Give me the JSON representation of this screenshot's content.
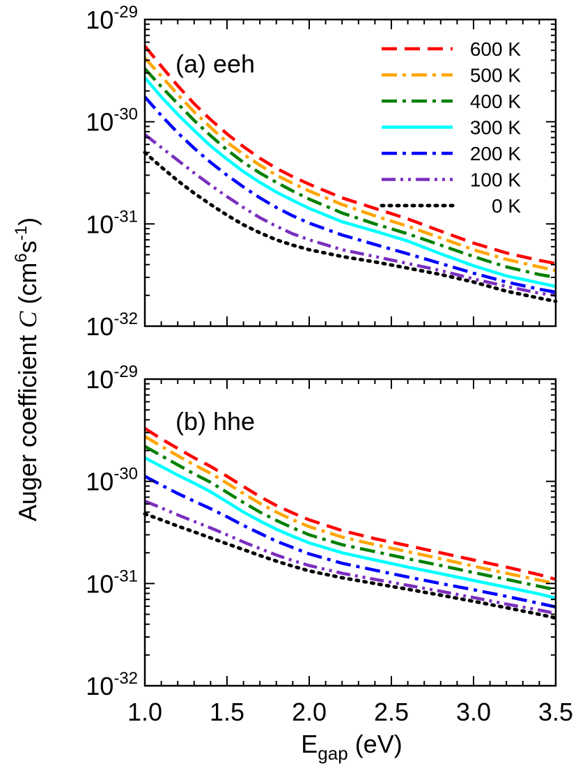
{
  "chart_data": {
    "type": "line",
    "layout": "two vertically stacked panels sharing the x axis",
    "xlabel_main": "E",
    "xlabel_sub": "gap",
    "xlabel_unit": " (eV)",
    "ylabel_text": "Auger coefficient ",
    "ylabel_symbol": "C",
    "ylabel_unit_open": " (cm",
    "ylabel_unit_exp1": "6",
    "ylabel_unit_mid": "s",
    "ylabel_unit_exp2": "-1",
    "ylabel_unit_close": ")",
    "xlim": [
      1.0,
      3.5
    ],
    "x_ticks": [
      "1.0",
      "1.5",
      "2.0",
      "2.5",
      "3.0",
      "3.5"
    ],
    "y_scale": "log",
    "ylim": [
      1e-32,
      1e-29
    ],
    "y_tick_base": "10",
    "y_tick_exponents": [
      "-32",
      "-31",
      "-30",
      "-29"
    ],
    "grid": false,
    "legend_position": "top-right of panel (a)",
    "colors": {
      "600 K": "#ff0000",
      "500 K": "#ffa500",
      "400 K": "#008000",
      "300 K": "#00ffff",
      "200 K": "#0000ff",
      "100 K": "#7b2fbe",
      "0 K": "#000000"
    },
    "panels": [
      {
        "label": "(a) eeh",
        "x": [
          1.0,
          1.1,
          1.2,
          1.3,
          1.4,
          1.5,
          1.6,
          1.7,
          1.8,
          1.9,
          2.0,
          2.2,
          2.4,
          2.6,
          2.8,
          3.0,
          3.2,
          3.4,
          3.5
        ],
        "series": [
          {
            "name": "600 K",
            "style": "dashed",
            "values": [
              5.5e-30,
              3.5e-30,
              2.25e-30,
              1.5e-30,
              1.05e-30,
              7.6e-31,
              5.7e-31,
              4.4e-31,
              3.5e-31,
              2.9e-31,
              2.45e-31,
              1.8e-31,
              1.42e-31,
              1.12e-31,
              8.5e-32,
              6.5e-32,
              5.2e-32,
              4.4e-32,
              4.1e-32
            ]
          },
          {
            "name": "500 K",
            "style": "dash-dot",
            "values": [
              4.2e-30,
              2.8e-30,
              1.85e-30,
              1.25e-30,
              8.8e-31,
              6.3e-31,
              4.8e-31,
              3.75e-31,
              3e-31,
              2.5e-31,
              2.1e-31,
              1.55e-31,
              1.2e-31,
              9.5e-32,
              7.3e-32,
              5.6e-32,
              4.5e-32,
              3.8e-32,
              3.5e-32
            ]
          },
          {
            "name": "400 K",
            "style": "dash-dot",
            "values": [
              3.3e-30,
              2.2e-30,
              1.5e-30,
              1.03e-30,
              7.3e-31,
              5.3e-31,
              4e-31,
              3.15e-31,
              2.55e-31,
              2.1e-31,
              1.75e-31,
              1.28e-31,
              1e-31,
              8e-32,
              6.2e-32,
              4.8e-32,
              3.8e-32,
              3.2e-32,
              3e-32
            ]
          },
          {
            "name": "300 K",
            "style": "solid",
            "values": [
              2.7e-30,
              1.75e-30,
              1.18e-30,
              8.2e-31,
              5.8e-31,
              4.3e-31,
              3.25e-31,
              2.55e-31,
              2.05e-31,
              1.7e-31,
              1.42e-31,
              1.05e-31,
              8.5e-32,
              6.8e-32,
              5.1e-32,
              3.9e-32,
              3.1e-32,
              2.65e-32,
              2.45e-32
            ]
          },
          {
            "name": "200 K",
            "style": "dash-dot",
            "values": [
              1.75e-30,
              1.15e-30,
              7.8e-31,
              5.5e-31,
              4e-31,
              3e-31,
              2.3e-31,
              1.8e-31,
              1.45e-31,
              1.2e-31,
              1.02e-31,
              7.8e-32,
              6.3e-32,
              5.1e-32,
              4.1e-32,
              3.3e-32,
              2.7e-32,
              2.3e-32,
              2.15e-32
            ]
          },
          {
            "name": "100 K",
            "style": "dash-dot-dot",
            "values": [
              7.5e-31,
              5.6e-31,
              4.2e-31,
              3.15e-31,
              2.4e-31,
              1.85e-31,
              1.45e-31,
              1.15e-31,
              9.5e-32,
              8e-32,
              7e-32,
              5.6e-32,
              4.8e-32,
              4.1e-32,
              3.5e-32,
              2.9e-32,
              2.45e-32,
              2.1e-32,
              2e-32
            ]
          },
          {
            "name": "0 K",
            "style": "dotted",
            "values": [
              5e-31,
              3.6e-31,
              2.65e-31,
              2e-31,
              1.55e-31,
              1.22e-31,
              9.8e-32,
              8.2e-32,
              7e-32,
              6.2e-32,
              5.6e-32,
              4.8e-32,
              4.25e-32,
              3.7e-32,
              3.2e-32,
              2.7e-32,
              2.2e-32,
              1.88e-32,
              1.75e-32
            ]
          }
        ]
      },
      {
        "label": "(b) hhe",
        "x": [
          1.0,
          1.1,
          1.2,
          1.3,
          1.4,
          1.5,
          1.6,
          1.7,
          1.8,
          1.9,
          2.0,
          2.2,
          2.4,
          2.6,
          2.8,
          3.0,
          3.2,
          3.4,
          3.5
        ],
        "series": [
          {
            "name": "600 K",
            "style": "dashed",
            "values": [
              3.3e-30,
              2.6e-30,
              2.1e-30,
              1.7e-30,
              1.4e-30,
              1.12e-30,
              8.9e-31,
              7.1e-31,
              5.8e-31,
              4.9e-31,
              4.2e-31,
              3.3e-31,
              2.75e-31,
              2.35e-31,
              2e-31,
              1.7e-31,
              1.45e-31,
              1.22e-31,
              1.1e-31
            ]
          },
          {
            "name": "500 K",
            "style": "dash-dot",
            "values": [
              2.75e-30,
              2.2e-30,
              1.78e-30,
              1.45e-30,
              1.2e-30,
              9.6e-31,
              7.6e-31,
              6.1e-31,
              5e-31,
              4.2e-31,
              3.6e-31,
              2.85e-31,
              2.4e-31,
              2.05e-31,
              1.75e-31,
              1.48e-31,
              1.26e-31,
              1.08e-31,
              1e-31
            ]
          },
          {
            "name": "400 K",
            "style": "dash-dot",
            "values": [
              2.2e-30,
              1.78e-30,
              1.45e-30,
              1.18e-30,
              9.8e-31,
              7.8e-31,
              6.2e-31,
              5e-31,
              4.15e-31,
              3.5e-31,
              3e-31,
              2.4e-31,
              2.05e-31,
              1.75e-31,
              1.5e-31,
              1.28e-31,
              1.1e-31,
              9.4e-32,
              8.7e-32
            ]
          },
          {
            "name": "300 K",
            "style": "solid",
            "values": [
              1.7e-30,
              1.4e-30,
              1.15e-30,
              9.6e-31,
              7.9e-31,
              6.3e-31,
              5e-31,
              4.1e-31,
              3.4e-31,
              2.9e-31,
              2.5e-31,
              2e-31,
              1.7e-31,
              1.45e-31,
              1.25e-31,
              1.07e-31,
              9.2e-32,
              7.9e-32,
              7.2e-32
            ]
          },
          {
            "name": "200 K",
            "style": "dash-dot",
            "values": [
              1.12e-30,
              9.2e-31,
              7.6e-31,
              6.4e-31,
              5.4e-31,
              4.5e-31,
              3.7e-31,
              3.1e-31,
              2.6e-31,
              2.25e-31,
              1.95e-31,
              1.58e-31,
              1.35e-31,
              1.16e-31,
              1e-31,
              8.7e-32,
              7.5e-32,
              6.4e-32,
              5.9e-32
            ]
          },
          {
            "name": "100 K",
            "style": "dash-dot-dot",
            "values": [
              6.4e-31,
              5.5e-31,
              4.7e-31,
              4.05e-31,
              3.5e-31,
              3e-31,
              2.55e-31,
              2.2e-31,
              1.9e-31,
              1.68e-31,
              1.5e-31,
              1.26e-31,
              1.1e-31,
              9.6e-32,
              8.4e-32,
              7.3e-32,
              6.3e-32,
              5.5e-32,
              5.1e-32
            ]
          },
          {
            "name": "0 K",
            "style": "dotted",
            "values": [
              4.8e-31,
              4.2e-31,
              3.65e-31,
              3.2e-31,
              2.8e-31,
              2.45e-31,
              2.15e-31,
              1.88e-31,
              1.66e-31,
              1.48e-31,
              1.33e-31,
              1.14e-31,
              1e-31,
              8.8e-32,
              7.7e-32,
              6.7e-32,
              5.8e-32,
              5e-32,
              4.6e-32
            ]
          }
        ]
      }
    ]
  }
}
